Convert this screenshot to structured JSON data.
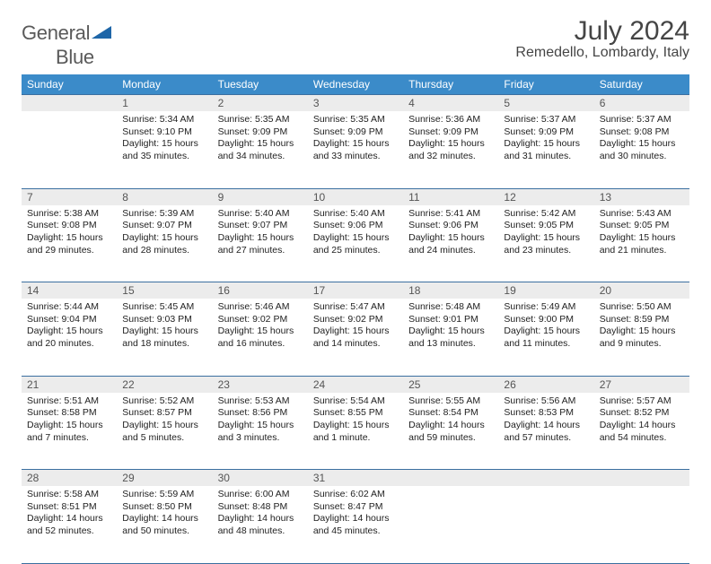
{
  "logo": {
    "part1": "General",
    "part2": "Blue"
  },
  "title": "July 2024",
  "location": "Remedello, Lombardy, Italy",
  "weekdays": [
    "Sunday",
    "Monday",
    "Tuesday",
    "Wednesday",
    "Thursday",
    "Friday",
    "Saturday"
  ],
  "colors": {
    "header_bg": "#3b8bc9",
    "header_fg": "#ffffff",
    "daynum_bg": "#ececec",
    "rule": "#3b6fa0",
    "logo_accent": "#1e66a8",
    "text": "#222222"
  },
  "layout": {
    "first_weekday_index": 1,
    "days_in_month": 31
  },
  "days": {
    "1": {
      "sunrise": "5:34 AM",
      "sunset": "9:10 PM",
      "daylight": "15 hours and 35 minutes."
    },
    "2": {
      "sunrise": "5:35 AM",
      "sunset": "9:09 PM",
      "daylight": "15 hours and 34 minutes."
    },
    "3": {
      "sunrise": "5:35 AM",
      "sunset": "9:09 PM",
      "daylight": "15 hours and 33 minutes."
    },
    "4": {
      "sunrise": "5:36 AM",
      "sunset": "9:09 PM",
      "daylight": "15 hours and 32 minutes."
    },
    "5": {
      "sunrise": "5:37 AM",
      "sunset": "9:09 PM",
      "daylight": "15 hours and 31 minutes."
    },
    "6": {
      "sunrise": "5:37 AM",
      "sunset": "9:08 PM",
      "daylight": "15 hours and 30 minutes."
    },
    "7": {
      "sunrise": "5:38 AM",
      "sunset": "9:08 PM",
      "daylight": "15 hours and 29 minutes."
    },
    "8": {
      "sunrise": "5:39 AM",
      "sunset": "9:07 PM",
      "daylight": "15 hours and 28 minutes."
    },
    "9": {
      "sunrise": "5:40 AM",
      "sunset": "9:07 PM",
      "daylight": "15 hours and 27 minutes."
    },
    "10": {
      "sunrise": "5:40 AM",
      "sunset": "9:06 PM",
      "daylight": "15 hours and 25 minutes."
    },
    "11": {
      "sunrise": "5:41 AM",
      "sunset": "9:06 PM",
      "daylight": "15 hours and 24 minutes."
    },
    "12": {
      "sunrise": "5:42 AM",
      "sunset": "9:05 PM",
      "daylight": "15 hours and 23 minutes."
    },
    "13": {
      "sunrise": "5:43 AM",
      "sunset": "9:05 PM",
      "daylight": "15 hours and 21 minutes."
    },
    "14": {
      "sunrise": "5:44 AM",
      "sunset": "9:04 PM",
      "daylight": "15 hours and 20 minutes."
    },
    "15": {
      "sunrise": "5:45 AM",
      "sunset": "9:03 PM",
      "daylight": "15 hours and 18 minutes."
    },
    "16": {
      "sunrise": "5:46 AM",
      "sunset": "9:02 PM",
      "daylight": "15 hours and 16 minutes."
    },
    "17": {
      "sunrise": "5:47 AM",
      "sunset": "9:02 PM",
      "daylight": "15 hours and 14 minutes."
    },
    "18": {
      "sunrise": "5:48 AM",
      "sunset": "9:01 PM",
      "daylight": "15 hours and 13 minutes."
    },
    "19": {
      "sunrise": "5:49 AM",
      "sunset": "9:00 PM",
      "daylight": "15 hours and 11 minutes."
    },
    "20": {
      "sunrise": "5:50 AM",
      "sunset": "8:59 PM",
      "daylight": "15 hours and 9 minutes."
    },
    "21": {
      "sunrise": "5:51 AM",
      "sunset": "8:58 PM",
      "daylight": "15 hours and 7 minutes."
    },
    "22": {
      "sunrise": "5:52 AM",
      "sunset": "8:57 PM",
      "daylight": "15 hours and 5 minutes."
    },
    "23": {
      "sunrise": "5:53 AM",
      "sunset": "8:56 PM",
      "daylight": "15 hours and 3 minutes."
    },
    "24": {
      "sunrise": "5:54 AM",
      "sunset": "8:55 PM",
      "daylight": "15 hours and 1 minute."
    },
    "25": {
      "sunrise": "5:55 AM",
      "sunset": "8:54 PM",
      "daylight": "14 hours and 59 minutes."
    },
    "26": {
      "sunrise": "5:56 AM",
      "sunset": "8:53 PM",
      "daylight": "14 hours and 57 minutes."
    },
    "27": {
      "sunrise": "5:57 AM",
      "sunset": "8:52 PM",
      "daylight": "14 hours and 54 minutes."
    },
    "28": {
      "sunrise": "5:58 AM",
      "sunset": "8:51 PM",
      "daylight": "14 hours and 52 minutes."
    },
    "29": {
      "sunrise": "5:59 AM",
      "sunset": "8:50 PM",
      "daylight": "14 hours and 50 minutes."
    },
    "30": {
      "sunrise": "6:00 AM",
      "sunset": "8:48 PM",
      "daylight": "14 hours and 48 minutes."
    },
    "31": {
      "sunrise": "6:02 AM",
      "sunset": "8:47 PM",
      "daylight": "14 hours and 45 minutes."
    }
  },
  "labels": {
    "sunrise": "Sunrise: ",
    "sunset": "Sunset: ",
    "daylight": "Daylight: "
  }
}
